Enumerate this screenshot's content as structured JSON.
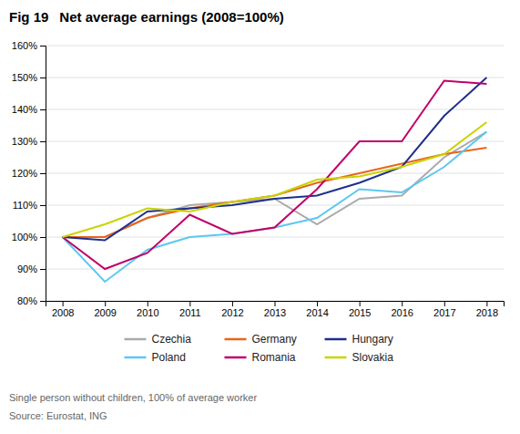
{
  "chart_data": {
    "type": "line",
    "title": "Fig 19",
    "subtitle": "Net average earnings (2008=100%)",
    "x": [
      2008,
      2009,
      2010,
      2011,
      2012,
      2013,
      2014,
      2015,
      2016,
      2017,
      2018
    ],
    "series": [
      {
        "name": "Czechia",
        "color": "#aaaaaa",
        "values": [
          100,
          100,
          106,
          110,
          111,
          112,
          104,
          112,
          113,
          125,
          133
        ]
      },
      {
        "name": "Germany",
        "color": "#e8651a",
        "values": [
          100,
          100,
          106,
          109,
          111,
          113,
          117,
          120,
          123,
          126,
          128
        ]
      },
      {
        "name": "Hungary",
        "color": "#1f2f8c",
        "values": [
          100,
          99,
          108,
          109,
          110,
          112,
          113,
          117,
          122,
          138,
          150
        ]
      },
      {
        "name": "Poland",
        "color": "#5bc8f0",
        "values": [
          100,
          86,
          96,
          100,
          101,
          103,
          106,
          115,
          114,
          122,
          133
        ]
      },
      {
        "name": "Romania",
        "color": "#c0006a",
        "values": [
          100,
          90,
          95,
          107,
          101,
          103,
          115,
          130,
          130,
          149,
          148
        ]
      },
      {
        "name": "Slovakia",
        "color": "#c8d400",
        "values": [
          100,
          104,
          109,
          108,
          111,
          113,
          118,
          119,
          122,
          126,
          136
        ]
      }
    ],
    "xlim": [
      2007.6,
      2018.4
    ],
    "xticks": [
      2008,
      2009,
      2010,
      2011,
      2012,
      2013,
      2014,
      2015,
      2016,
      2017,
      2018
    ],
    "ylim": [
      80,
      160
    ],
    "yticks": [
      {
        "value": 80,
        "label": "80%"
      },
      {
        "value": 90,
        "label": "90%"
      },
      {
        "value": 100,
        "label": "100%"
      },
      {
        "value": 110,
        "label": "110%"
      },
      {
        "value": 120,
        "label": "120%"
      },
      {
        "value": 130,
        "label": "130%"
      },
      {
        "value": 140,
        "label": "140%"
      },
      {
        "value": 150,
        "label": "150%"
      },
      {
        "value": 160,
        "label": "160%"
      }
    ],
    "grid": true,
    "legend": "bottom",
    "annotations": [
      "Single person without children, 100% of average worker",
      "Source: Eurostat, ING"
    ]
  }
}
